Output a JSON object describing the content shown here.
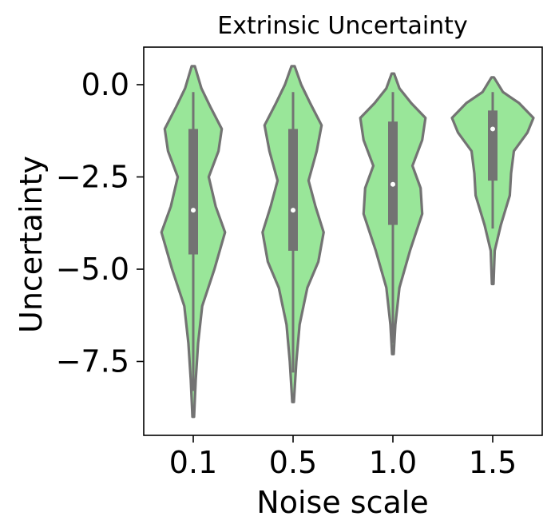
{
  "chart_data": {
    "type": "violin",
    "title": "Extrinsic Uncertainty",
    "xlabel": "Noise scale",
    "ylabel": "Uncertainty",
    "categories": [
      "0.1",
      "0.5",
      "1.0",
      "1.5"
    ],
    "yticks": [
      0.0,
      -2.5,
      -5.0,
      -7.5
    ],
    "ytick_labels": [
      "0.0",
      "−2.5",
      "−5.0",
      "−7.5"
    ],
    "ylim": [
      -9.6,
      1.0
    ],
    "grid": false,
    "legend": "none",
    "colors": {
      "fill": "#99e699",
      "edge": "#737373",
      "median": "#ffffff"
    },
    "violins": [
      {
        "category": "0.1",
        "min": -9.0,
        "max": 0.5,
        "q1": -4.6,
        "median": -3.4,
        "q3": -1.2,
        "whisker_low": -8.3,
        "whisker_high": -0.2,
        "profile": [
          [
            -9.0,
            0.02
          ],
          [
            -8.0,
            0.06
          ],
          [
            -7.0,
            0.12
          ],
          [
            -6.0,
            0.22
          ],
          [
            -5.0,
            0.52
          ],
          [
            -4.0,
            0.78
          ],
          [
            -3.3,
            0.55
          ],
          [
            -2.5,
            0.38
          ],
          [
            -1.8,
            0.62
          ],
          [
            -1.2,
            0.7
          ],
          [
            -0.6,
            0.42
          ],
          [
            -0.1,
            0.2
          ],
          [
            0.5,
            0.04
          ]
        ]
      },
      {
        "category": "0.5",
        "min": -8.6,
        "max": 0.5,
        "q1": -4.5,
        "median": -3.4,
        "q3": -1.2,
        "whisker_low": -7.8,
        "whisker_high": -0.2,
        "profile": [
          [
            -8.6,
            0.02
          ],
          [
            -7.5,
            0.08
          ],
          [
            -6.5,
            0.16
          ],
          [
            -5.5,
            0.35
          ],
          [
            -4.8,
            0.62
          ],
          [
            -4.0,
            0.75
          ],
          [
            -3.3,
            0.55
          ],
          [
            -2.6,
            0.38
          ],
          [
            -1.8,
            0.58
          ],
          [
            -1.1,
            0.7
          ],
          [
            -0.5,
            0.42
          ],
          [
            0.0,
            0.2
          ],
          [
            0.5,
            0.04
          ]
        ]
      },
      {
        "category": "1.0",
        "min": -7.3,
        "max": 0.3,
        "q1": -3.8,
        "median": -2.7,
        "q3": -1.0,
        "whisker_low": -7.0,
        "whisker_high": -0.2,
        "profile": [
          [
            -7.3,
            0.02
          ],
          [
            -6.5,
            0.06
          ],
          [
            -5.5,
            0.16
          ],
          [
            -4.5,
            0.42
          ],
          [
            -3.5,
            0.72
          ],
          [
            -2.8,
            0.68
          ],
          [
            -2.2,
            0.48
          ],
          [
            -1.5,
            0.72
          ],
          [
            -0.9,
            0.8
          ],
          [
            -0.5,
            0.45
          ],
          [
            -0.1,
            0.16
          ],
          [
            0.3,
            0.03
          ]
        ]
      },
      {
        "category": "1.5",
        "min": -5.4,
        "max": 0.2,
        "q1": -2.6,
        "median": -1.2,
        "q3": -0.7,
        "whisker_low": -3.9,
        "whisker_high": -0.2,
        "profile": [
          [
            -5.4,
            0.02
          ],
          [
            -4.5,
            0.05
          ],
          [
            -3.8,
            0.2
          ],
          [
            -3.0,
            0.42
          ],
          [
            -2.4,
            0.45
          ],
          [
            -1.8,
            0.52
          ],
          [
            -1.3,
            0.85
          ],
          [
            -0.9,
            1.0
          ],
          [
            -0.5,
            0.65
          ],
          [
            -0.2,
            0.25
          ],
          [
            0.2,
            0.03
          ]
        ]
      }
    ]
  }
}
